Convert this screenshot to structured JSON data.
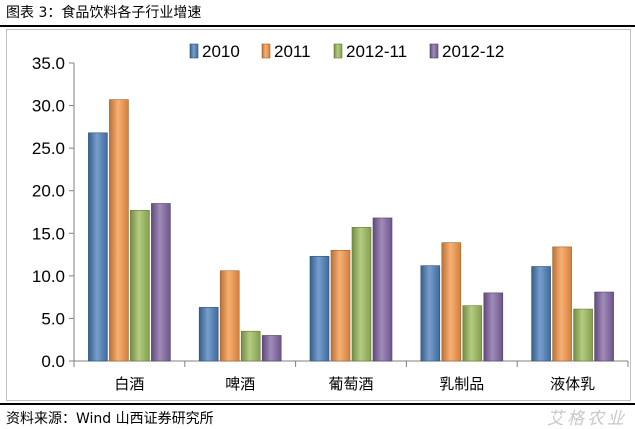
{
  "header": {
    "title": "图表 3：食品饮料各子行业增速"
  },
  "footer": {
    "source": "资料来源：Wind  山西证券研究所",
    "watermark": "艾格农业"
  },
  "chart_data": {
    "type": "bar",
    "title": "",
    "xlabel": "",
    "ylabel": "",
    "categories": [
      "白酒",
      "啤酒",
      "葡萄酒",
      "乳制品",
      "液体乳"
    ],
    "ylim": [
      0,
      35
    ],
    "yticks": [
      "0.0",
      "5.0",
      "10.0",
      "15.0",
      "20.0",
      "25.0",
      "30.0",
      "35.0"
    ],
    "grid": false,
    "legend_position": "top",
    "series": [
      {
        "name": "2010",
        "color": "#4a7ebb",
        "values": [
          26.8,
          6.3,
          12.3,
          11.2,
          11.1
        ]
      },
      {
        "name": "2011",
        "color": "#f79646",
        "values": [
          30.7,
          10.6,
          13.0,
          13.9,
          13.4
        ]
      },
      {
        "name": "2012-11",
        "color": "#9bbb59",
        "values": [
          17.7,
          3.5,
          15.7,
          6.5,
          6.1
        ]
      },
      {
        "name": "2012-12",
        "color": "#8064a2",
        "values": [
          18.5,
          3.0,
          16.8,
          8.0,
          8.1
        ]
      }
    ]
  }
}
